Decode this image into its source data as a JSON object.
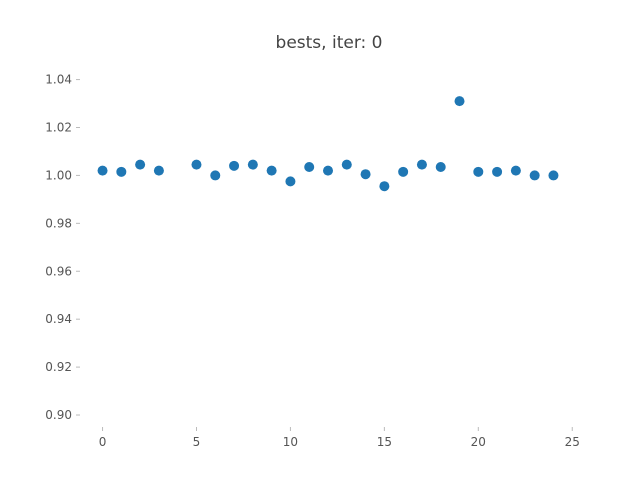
{
  "chart_data": {
    "type": "scatter",
    "title": "bests, iter: 0",
    "xlabel": "",
    "ylabel": "",
    "xlim": [
      -1.2,
      25.2
    ],
    "ylim": [
      0.895,
      1.049
    ],
    "xticks": [
      0,
      5,
      10,
      15,
      20,
      25
    ],
    "xtick_labels": [
      "0",
      "5",
      "10",
      "15",
      "20",
      "25"
    ],
    "yticks": [
      0.9,
      0.92,
      0.94,
      0.96,
      0.98,
      1.0,
      1.02,
      1.04
    ],
    "ytick_labels": [
      "0.90",
      "0.92",
      "0.94",
      "0.96",
      "0.98",
      "1.00",
      "1.02",
      "1.04"
    ],
    "grid": false,
    "color": "#1f77b4",
    "x": [
      0,
      1,
      2,
      3,
      5,
      6,
      7,
      8,
      9,
      10,
      11,
      12,
      13,
      14,
      15,
      16,
      17,
      18,
      19,
      20,
      21,
      22,
      23,
      24
    ],
    "y": [
      1.002,
      1.0015,
      1.0045,
      1.002,
      1.0045,
      1.0,
      1.004,
      1.0045,
      1.002,
      0.9975,
      1.0035,
      1.002,
      1.0045,
      1.0005,
      0.9955,
      1.0015,
      1.0045,
      1.0035,
      1.031,
      1.0015,
      1.0015,
      1.002,
      1.0,
      1.0
    ]
  }
}
